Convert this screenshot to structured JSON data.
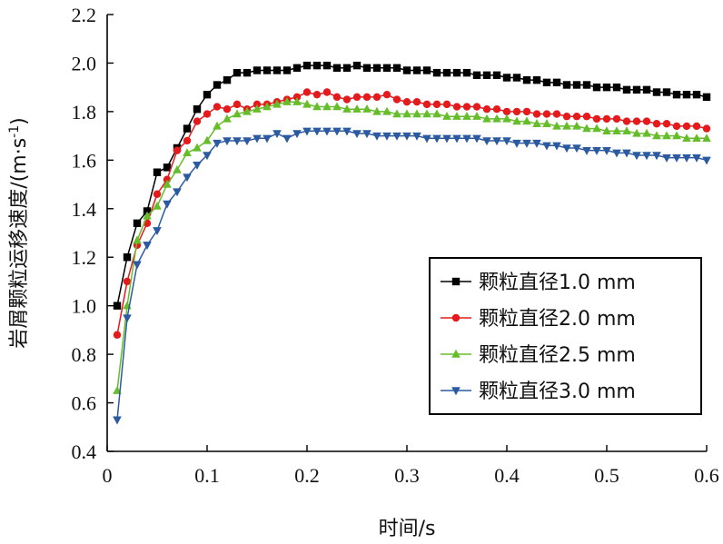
{
  "chart_data": {
    "type": "line",
    "xlabel": "时间/s",
    "ylabel": "岩屑颗粒运移速度/(m·s",
    "ylabel_sup": "-1",
    "ylabel_tail": ")",
    "xlim": [
      0,
      0.6
    ],
    "ylim": [
      0.4,
      2.2
    ],
    "xticks": [
      "0",
      "0.1",
      "0.2",
      "0.3",
      "0.4",
      "0.5",
      "0.6"
    ],
    "yticks": [
      "0.4",
      "0.6",
      "0.8",
      "1.0",
      "1.2",
      "1.4",
      "1.6",
      "1.8",
      "2.0",
      "2.2"
    ],
    "grid": false,
    "legend_position": "right",
    "series": [
      {
        "name": "颗粒直径1.0 mm",
        "color": "#000000",
        "marker": "square",
        "x": [
          0.01,
          0.02,
          0.03,
          0.04,
          0.05,
          0.06,
          0.07,
          0.08,
          0.09,
          0.1,
          0.11,
          0.12,
          0.13,
          0.14,
          0.15,
          0.16,
          0.17,
          0.18,
          0.19,
          0.2,
          0.21,
          0.22,
          0.23,
          0.24,
          0.25,
          0.26,
          0.27,
          0.28,
          0.29,
          0.3,
          0.31,
          0.32,
          0.33,
          0.34,
          0.35,
          0.36,
          0.37,
          0.38,
          0.39,
          0.4,
          0.41,
          0.42,
          0.43,
          0.44,
          0.45,
          0.46,
          0.47,
          0.48,
          0.49,
          0.5,
          0.51,
          0.52,
          0.53,
          0.54,
          0.55,
          0.56,
          0.57,
          0.58,
          0.59,
          0.6
        ],
        "y": [
          1.0,
          1.2,
          1.34,
          1.39,
          1.55,
          1.57,
          1.65,
          1.73,
          1.81,
          1.87,
          1.91,
          1.93,
          1.96,
          1.96,
          1.97,
          1.97,
          1.97,
          1.97,
          1.98,
          1.99,
          1.99,
          1.99,
          1.98,
          1.98,
          1.99,
          1.98,
          1.98,
          1.98,
          1.98,
          1.97,
          1.97,
          1.97,
          1.96,
          1.96,
          1.96,
          1.96,
          1.95,
          1.95,
          1.95,
          1.94,
          1.94,
          1.93,
          1.93,
          1.92,
          1.92,
          1.91,
          1.91,
          1.91,
          1.9,
          1.9,
          1.9,
          1.89,
          1.89,
          1.89,
          1.88,
          1.88,
          1.87,
          1.87,
          1.87,
          1.86
        ]
      },
      {
        "name": "颗粒直径2.0 mm",
        "color": "#e41a1c",
        "marker": "circle",
        "x": [
          0.01,
          0.02,
          0.03,
          0.04,
          0.05,
          0.06,
          0.07,
          0.08,
          0.09,
          0.1,
          0.11,
          0.12,
          0.13,
          0.14,
          0.15,
          0.16,
          0.17,
          0.18,
          0.19,
          0.2,
          0.21,
          0.22,
          0.23,
          0.24,
          0.25,
          0.26,
          0.27,
          0.28,
          0.29,
          0.3,
          0.31,
          0.32,
          0.33,
          0.34,
          0.35,
          0.36,
          0.37,
          0.38,
          0.39,
          0.4,
          0.41,
          0.42,
          0.43,
          0.44,
          0.45,
          0.46,
          0.47,
          0.48,
          0.49,
          0.5,
          0.51,
          0.52,
          0.53,
          0.54,
          0.55,
          0.56,
          0.57,
          0.58,
          0.59,
          0.6
        ],
        "y": [
          0.88,
          1.1,
          1.25,
          1.34,
          1.46,
          1.52,
          1.64,
          1.68,
          1.76,
          1.79,
          1.82,
          1.81,
          1.83,
          1.81,
          1.83,
          1.83,
          1.84,
          1.85,
          1.86,
          1.88,
          1.87,
          1.88,
          1.86,
          1.85,
          1.86,
          1.86,
          1.86,
          1.87,
          1.85,
          1.84,
          1.84,
          1.83,
          1.83,
          1.83,
          1.82,
          1.82,
          1.82,
          1.81,
          1.81,
          1.8,
          1.8,
          1.8,
          1.79,
          1.79,
          1.79,
          1.78,
          1.78,
          1.78,
          1.77,
          1.77,
          1.77,
          1.76,
          1.76,
          1.76,
          1.75,
          1.75,
          1.74,
          1.74,
          1.74,
          1.73
        ]
      },
      {
        "name": "颗粒直径2.5 mm",
        "color": "#66bd2a",
        "marker": "triangle-up",
        "x": [
          0.01,
          0.02,
          0.03,
          0.04,
          0.05,
          0.06,
          0.07,
          0.08,
          0.09,
          0.1,
          0.11,
          0.12,
          0.13,
          0.14,
          0.15,
          0.16,
          0.17,
          0.18,
          0.19,
          0.2,
          0.21,
          0.22,
          0.23,
          0.24,
          0.25,
          0.26,
          0.27,
          0.28,
          0.29,
          0.3,
          0.31,
          0.32,
          0.33,
          0.34,
          0.35,
          0.36,
          0.37,
          0.38,
          0.39,
          0.4,
          0.41,
          0.42,
          0.43,
          0.44,
          0.45,
          0.46,
          0.47,
          0.48,
          0.49,
          0.5,
          0.51,
          0.52,
          0.53,
          0.54,
          0.55,
          0.56,
          0.57,
          0.58,
          0.59,
          0.6
        ],
        "y": [
          0.65,
          1.0,
          1.27,
          1.37,
          1.41,
          1.5,
          1.56,
          1.63,
          1.65,
          1.68,
          1.74,
          1.77,
          1.79,
          1.8,
          1.81,
          1.82,
          1.83,
          1.84,
          1.84,
          1.83,
          1.82,
          1.82,
          1.82,
          1.81,
          1.81,
          1.81,
          1.8,
          1.8,
          1.79,
          1.79,
          1.79,
          1.79,
          1.79,
          1.78,
          1.78,
          1.78,
          1.78,
          1.77,
          1.77,
          1.77,
          1.76,
          1.76,
          1.75,
          1.75,
          1.74,
          1.74,
          1.74,
          1.73,
          1.73,
          1.72,
          1.72,
          1.72,
          1.71,
          1.71,
          1.7,
          1.7,
          1.7,
          1.69,
          1.69,
          1.69
        ]
      },
      {
        "name": "颗粒直径3.0 mm",
        "color": "#2c5aa0",
        "marker": "triangle-down",
        "x": [
          0.01,
          0.02,
          0.03,
          0.04,
          0.05,
          0.06,
          0.07,
          0.08,
          0.09,
          0.1,
          0.11,
          0.12,
          0.13,
          0.14,
          0.15,
          0.16,
          0.17,
          0.18,
          0.19,
          0.2,
          0.21,
          0.22,
          0.23,
          0.24,
          0.25,
          0.26,
          0.27,
          0.28,
          0.29,
          0.3,
          0.31,
          0.32,
          0.33,
          0.34,
          0.35,
          0.36,
          0.37,
          0.38,
          0.39,
          0.4,
          0.41,
          0.42,
          0.43,
          0.44,
          0.45,
          0.46,
          0.47,
          0.48,
          0.49,
          0.5,
          0.51,
          0.52,
          0.53,
          0.54,
          0.55,
          0.56,
          0.57,
          0.58,
          0.59,
          0.6
        ],
        "y": [
          0.53,
          0.95,
          1.17,
          1.25,
          1.31,
          1.42,
          1.47,
          1.53,
          1.58,
          1.62,
          1.67,
          1.68,
          1.68,
          1.68,
          1.69,
          1.69,
          1.71,
          1.69,
          1.71,
          1.72,
          1.72,
          1.72,
          1.72,
          1.72,
          1.71,
          1.71,
          1.7,
          1.7,
          1.7,
          1.7,
          1.7,
          1.69,
          1.69,
          1.69,
          1.69,
          1.69,
          1.69,
          1.68,
          1.68,
          1.68,
          1.67,
          1.67,
          1.67,
          1.66,
          1.66,
          1.65,
          1.65,
          1.64,
          1.64,
          1.64,
          1.63,
          1.63,
          1.62,
          1.62,
          1.62,
          1.61,
          1.61,
          1.61,
          1.61,
          1.6
        ]
      }
    ]
  }
}
